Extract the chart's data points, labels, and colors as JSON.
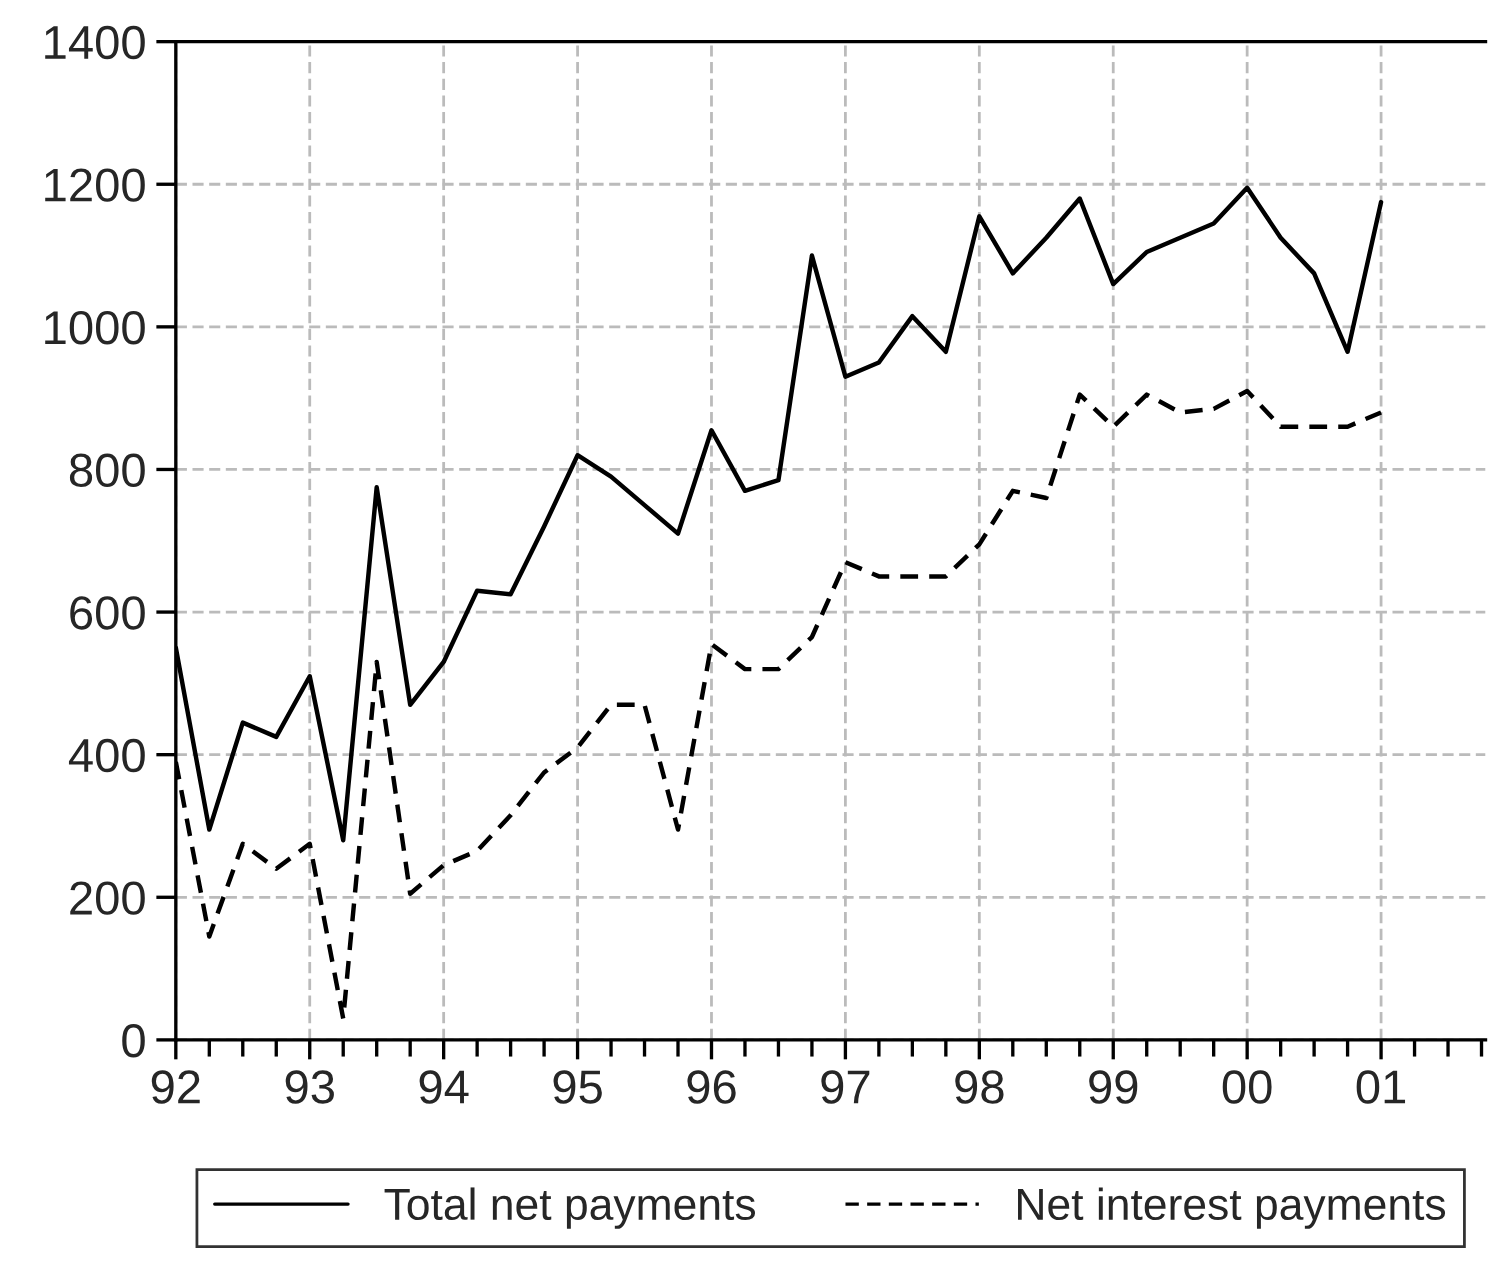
{
  "chart_data": {
    "type": "line",
    "x": [
      1992.0,
      1992.25,
      1992.5,
      1992.75,
      1993.0,
      1993.25,
      1993.5,
      1993.75,
      1994.0,
      1994.25,
      1994.5,
      1994.75,
      1995.0,
      1995.25,
      1995.5,
      1995.75,
      1996.0,
      1996.25,
      1996.5,
      1996.75,
      1997.0,
      1997.25,
      1997.5,
      1997.75,
      1998.0,
      1998.25,
      1998.5,
      1998.75,
      1999.0,
      1999.25,
      1999.5,
      1999.75,
      2000.0,
      2000.25,
      2000.5,
      2000.75,
      2001.0
    ],
    "series": [
      {
        "name": "Total net payments",
        "color": "#000000",
        "line_style": "solid",
        "values": [
          550,
          295,
          445,
          425,
          510,
          280,
          775,
          470,
          530,
          630,
          625,
          720,
          820,
          790,
          750,
          710,
          855,
          770,
          785,
          1100,
          930,
          950,
          1015,
          965,
          1155,
          1075,
          1125,
          1180,
          1060,
          1105,
          1125,
          1145,
          1195,
          1125,
          1075,
          965,
          1175
        ]
      },
      {
        "name": "Net interest payments",
        "color": "#000000",
        "line_style": "dashed",
        "values": [
          390,
          145,
          275,
          240,
          275,
          30,
          530,
          205,
          245,
          265,
          315,
          375,
          410,
          470,
          470,
          295,
          555,
          520,
          520,
          565,
          670,
          650,
          650,
          650,
          695,
          770,
          760,
          905,
          860,
          905,
          880,
          885,
          910,
          860,
          860,
          860,
          880
        ]
      }
    ],
    "xlim": [
      1992,
      2001.78
    ],
    "xticks": [
      {
        "value": 1992,
        "label": "92"
      },
      {
        "value": 1992.25,
        "label": null
      },
      {
        "value": 1992.5,
        "label": null
      },
      {
        "value": 1992.75,
        "label": null
      },
      {
        "value": 1993,
        "label": "93"
      },
      {
        "value": 1993.25,
        "label": null
      },
      {
        "value": 1993.5,
        "label": null
      },
      {
        "value": 1993.75,
        "label": null
      },
      {
        "value": 1994,
        "label": "94"
      },
      {
        "value": 1994.25,
        "label": null
      },
      {
        "value": 1994.5,
        "label": null
      },
      {
        "value": 1994.75,
        "label": null
      },
      {
        "value": 1995,
        "label": "95"
      },
      {
        "value": 1995.25,
        "label": null
      },
      {
        "value": 1995.5,
        "label": null
      },
      {
        "value": 1995.75,
        "label": null
      },
      {
        "value": 1996,
        "label": "96"
      },
      {
        "value": 1996.25,
        "label": null
      },
      {
        "value": 1996.5,
        "label": null
      },
      {
        "value": 1996.75,
        "label": null
      },
      {
        "value": 1997,
        "label": "97"
      },
      {
        "value": 1997.25,
        "label": null
      },
      {
        "value": 1997.5,
        "label": null
      },
      {
        "value": 1997.75,
        "label": null
      },
      {
        "value": 1998,
        "label": "98"
      },
      {
        "value": 1998.25,
        "label": null
      },
      {
        "value": 1998.5,
        "label": null
      },
      {
        "value": 1998.75,
        "label": null
      },
      {
        "value": 1999,
        "label": "99"
      },
      {
        "value": 1999.25,
        "label": null
      },
      {
        "value": 1999.5,
        "label": null
      },
      {
        "value": 1999.75,
        "label": null
      },
      {
        "value": 2000,
        "label": "00"
      },
      {
        "value": 2000.25,
        "label": null
      },
      {
        "value": 2000.5,
        "label": null
      },
      {
        "value": 2000.75,
        "label": null
      },
      {
        "value": 2001,
        "label": "01"
      },
      {
        "value": 2001.25,
        "label": null
      },
      {
        "value": 2001.5,
        "label": null
      },
      {
        "value": 2001.75,
        "label": null
      }
    ],
    "ylim": [
      0,
      1400
    ],
    "yticks": [
      0,
      200,
      400,
      600,
      800,
      1000,
      1200,
      1400
    ],
    "grid": true,
    "legend": "bottom",
    "marker": "none"
  }
}
